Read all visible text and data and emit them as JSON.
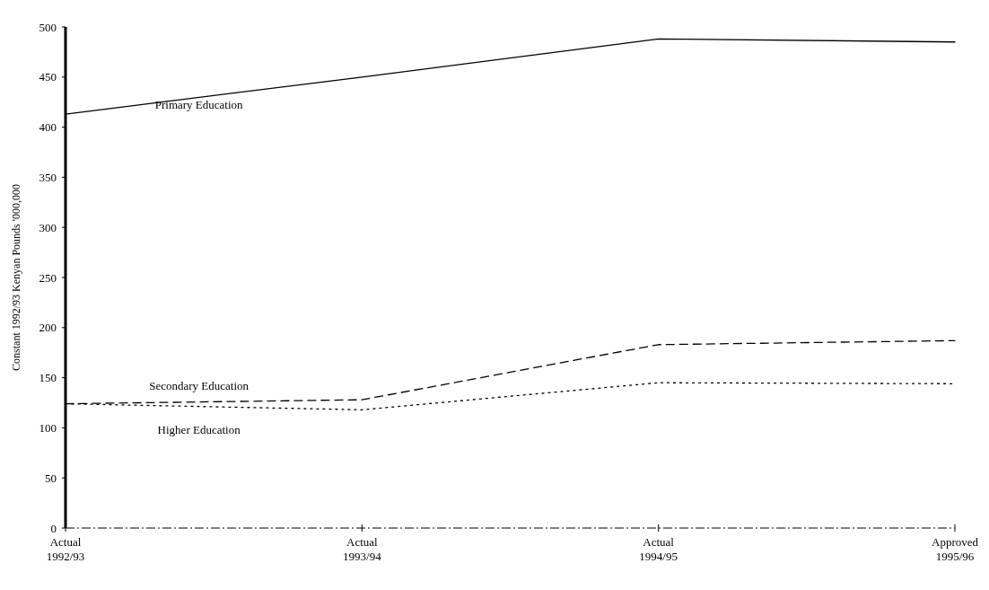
{
  "chart_data": {
    "type": "line",
    "ylabel": "Constant 1992/93 Kenyan Pounds '000,000",
    "categories": [
      "Actual 1992/93",
      "Actual 1993/94",
      "Actual 1994/95",
      "Approved 1995/96"
    ],
    "series": [
      {
        "name": "Primary Education",
        "color": "#000000",
        "line_style": "solid",
        "values": [
          413,
          450,
          488,
          485
        ]
      },
      {
        "name": "Secondary Education",
        "color": "#000000",
        "line_style": "dashed",
        "values": [
          124,
          128,
          183,
          187
        ]
      },
      {
        "name": "Higher Education",
        "color": "#000000",
        "line_style": "dotted",
        "values": [
          124,
          118,
          145,
          144
        ]
      }
    ],
    "ylim": [
      0,
      500
    ],
    "yticks": [
      0,
      50,
      100,
      150,
      200,
      250,
      300,
      350,
      400,
      450,
      500
    ],
    "marker": "none"
  }
}
